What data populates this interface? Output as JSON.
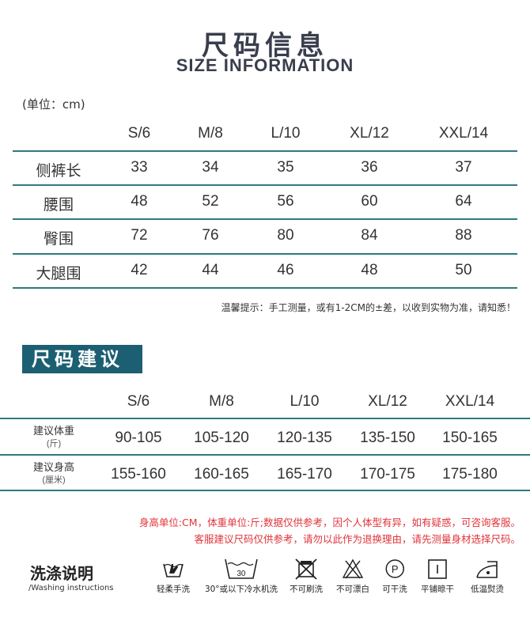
{
  "header": {
    "title_cn": "尺码信息",
    "title_en": "SIZE INFORMATION",
    "unit": "(单位：cm)"
  },
  "size_table": {
    "columns": [
      "S/6",
      "M/8",
      "L/10",
      "XL/12",
      "XXL/14"
    ],
    "rows": [
      {
        "label": "侧裤长",
        "values": [
          "33",
          "34",
          "35",
          "36",
          "37"
        ]
      },
      {
        "label": "腰围",
        "values": [
          "48",
          "52",
          "56",
          "60",
          "64"
        ]
      },
      {
        "label": "臀围",
        "values": [
          "72",
          "76",
          "80",
          "84",
          "88"
        ]
      },
      {
        "label": "大腿围",
        "values": [
          "42",
          "44",
          "46",
          "48",
          "50"
        ]
      }
    ],
    "note": "温馨提示：手工测量，或有1-2CM的±差，以收到实物为准，请知悉！"
  },
  "recommend": {
    "badge": "尺码建议",
    "columns": [
      "S/6",
      "M/8",
      "L/10",
      "XL/12",
      "XXL/14"
    ],
    "rows": [
      {
        "label": "建议体重",
        "sub": "(斤)",
        "values": [
          "90-105",
          "105-120",
          "120-135",
          "135-150",
          "150-165"
        ]
      },
      {
        "label": "建议身高",
        "sub": "(厘米)",
        "values": [
          "155-160",
          "160-165",
          "165-170",
          "170-175",
          "175-180"
        ]
      }
    ],
    "notes": [
      "身高单位:CM，体重单位:斤;数据仅供参考，因个人体型有异，如有疑惑，可咨询客服。",
      "客服建议尺码仅供参考，请勿以此作为退换理由，请先测量身材选择尺码。"
    ]
  },
  "washing": {
    "title": "洗涤说明",
    "subtitle": "/Washing instructions",
    "icons": [
      {
        "icon": "hand-wash-icon",
        "label": "轻柔手洗"
      },
      {
        "icon": "machine-wash-30-icon",
        "label": "30°或以下冷水机洗",
        "temp": "30"
      },
      {
        "icon": "no-brush-icon",
        "label": "不可刷洗"
      },
      {
        "icon": "no-bleach-icon",
        "label": "不可漂白"
      },
      {
        "icon": "dry-clean-icon",
        "label": "可干洗",
        "letter": "P"
      },
      {
        "icon": "flat-dry-icon",
        "label": "平铺晾干"
      },
      {
        "icon": "low-iron-icon",
        "label": "低温熨烫"
      }
    ]
  },
  "colors": {
    "accent": "#1c5f73",
    "line": "#2e7a82",
    "warning": "#e0333a"
  }
}
